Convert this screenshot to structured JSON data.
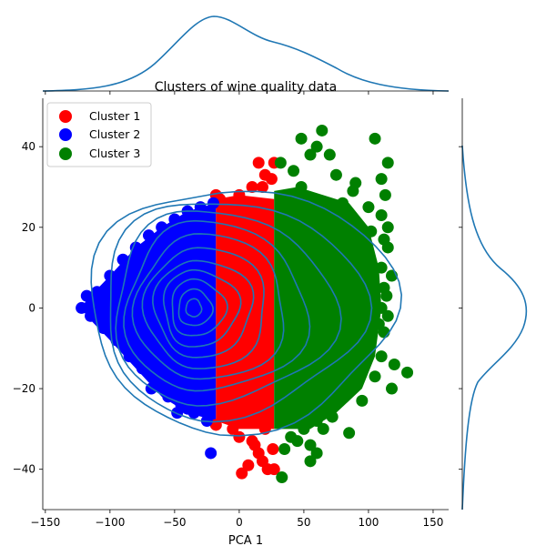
{
  "chart_data": {
    "type": "scatter",
    "title": "Clusters of wine quality data",
    "xlabel": "PCA 1",
    "ylabel": "",
    "xlim": [
      -152,
      162
    ],
    "ylim": [
      -50,
      52
    ],
    "xticks": [
      -150,
      -100,
      -50,
      0,
      50,
      100,
      150
    ],
    "yticks": [
      -40,
      -20,
      0,
      20,
      40
    ],
    "legend_position": "top-left",
    "colors": {
      "Cluster 1": "#ff0000",
      "Cluster 2": "#0000ff",
      "Cluster 3": "#008000",
      "kde": "#1f77b4"
    },
    "series": [
      {
        "name": "Cluster 1",
        "color": "#ff0000",
        "x_range": [
          -18,
          27
        ],
        "points": [
          [
            15,
            36
          ],
          [
            20,
            33
          ],
          [
            25,
            32
          ],
          [
            10,
            30
          ],
          [
            -18,
            28
          ],
          [
            0,
            28
          ],
          [
            27,
            36
          ],
          [
            -15,
            27
          ],
          [
            5,
            26
          ],
          [
            18,
            30
          ],
          [
            -5,
            -30
          ],
          [
            2,
            -41
          ],
          [
            7,
            -39
          ],
          [
            15,
            -36
          ],
          [
            22,
            -40
          ],
          [
            27,
            -40
          ],
          [
            26,
            -35
          ],
          [
            10,
            -33
          ],
          [
            -18,
            -29
          ],
          [
            5,
            -28
          ],
          [
            20,
            -30
          ],
          [
            12,
            -34
          ],
          [
            18,
            -38
          ],
          [
            -10,
            -26
          ],
          [
            0,
            -32
          ]
        ],
        "fill_region": {
          "x": [
            -18,
            27
          ],
          "y_top": [
            25,
            28,
            28,
            27,
            27
          ],
          "y_bottom": [
            -28,
            -29,
            -30,
            -30,
            -30
          ]
        }
      },
      {
        "name": "Cluster 2",
        "color": "#0000ff",
        "points": [
          [
            -122,
            0
          ],
          [
            -118,
            3
          ],
          [
            -110,
            4
          ],
          [
            -115,
            -2
          ],
          [
            -105,
            -5
          ],
          [
            -100,
            8
          ],
          [
            -95,
            -8
          ],
          [
            -90,
            12
          ],
          [
            -85,
            -12
          ],
          [
            -80,
            15
          ],
          [
            -75,
            -15
          ],
          [
            -70,
            18
          ],
          [
            -68,
            -20
          ],
          [
            -60,
            20
          ],
          [
            -55,
            -22
          ],
          [
            -50,
            22
          ],
          [
            -45,
            -24
          ],
          [
            -40,
            24
          ],
          [
            -35,
            -26
          ],
          [
            -30,
            25
          ],
          [
            -25,
            -28
          ],
          [
            -22,
            -36
          ],
          [
            -20,
            26
          ],
          [
            -82,
            -12
          ],
          [
            -96,
            5
          ],
          [
            -88,
            -6
          ],
          [
            -65,
            -18
          ],
          [
            -48,
            -26
          ],
          [
            -40,
            -25
          ]
        ],
        "fill_region": {
          "x_left": -122,
          "x_right": -18,
          "top_y": 26,
          "bottom_y": -28
        }
      },
      {
        "name": "Cluster 3",
        "color": "#008000",
        "points": [
          [
            64,
            44
          ],
          [
            105,
            42
          ],
          [
            48,
            42
          ],
          [
            60,
            40
          ],
          [
            70,
            38
          ],
          [
            55,
            38
          ],
          [
            115,
            36
          ],
          [
            32,
            36
          ],
          [
            42,
            34
          ],
          [
            75,
            33
          ],
          [
            110,
            32
          ],
          [
            48,
            30
          ],
          [
            90,
            31
          ],
          [
            113,
            28
          ],
          [
            88,
            29
          ],
          [
            80,
            26
          ],
          [
            100,
            25
          ],
          [
            110,
            23
          ],
          [
            115,
            20
          ],
          [
            102,
            19
          ],
          [
            112,
            17
          ],
          [
            115,
            15
          ],
          [
            100,
            12
          ],
          [
            110,
            10
          ],
          [
            118,
            8
          ],
          [
            112,
            5
          ],
          [
            114,
            3
          ],
          [
            110,
            0
          ],
          [
            115,
            -2
          ],
          [
            108,
            -4
          ],
          [
            112,
            -6
          ],
          [
            100,
            -8
          ],
          [
            110,
            -12
          ],
          [
            120,
            -14
          ],
          [
            130,
            -16
          ],
          [
            105,
            -17
          ],
          [
            118,
            -20
          ],
          [
            80,
            -20
          ],
          [
            95,
            -23
          ],
          [
            70,
            -24
          ],
          [
            60,
            -28
          ],
          [
            50,
            -30
          ],
          [
            40,
            -32
          ],
          [
            55,
            -34
          ],
          [
            35,
            -35
          ],
          [
            60,
            -36
          ],
          [
            55,
            -38
          ],
          [
            33,
            -42
          ],
          [
            85,
            -31
          ],
          [
            45,
            -33
          ],
          [
            65,
            -30
          ],
          [
            72,
            -27
          ]
        ],
        "fill_region": {
          "x_left": 27,
          "x_right": 105,
          "top_y": 30,
          "bottom_y": -30
        }
      }
    ]
  },
  "legend": {
    "items": [
      {
        "label": "Cluster 1",
        "color": "#ff0000"
      },
      {
        "label": "Cluster 2",
        "color": "#0000ff"
      },
      {
        "label": "Cluster 3",
        "color": "#008000"
      }
    ]
  },
  "axes": {
    "x_tick_labels": [
      "−150",
      "−100",
      "−50",
      "0",
      "50",
      "100",
      "150"
    ],
    "y_tick_labels": [
      "−40",
      "−20",
      "0",
      "20",
      "40"
    ]
  }
}
